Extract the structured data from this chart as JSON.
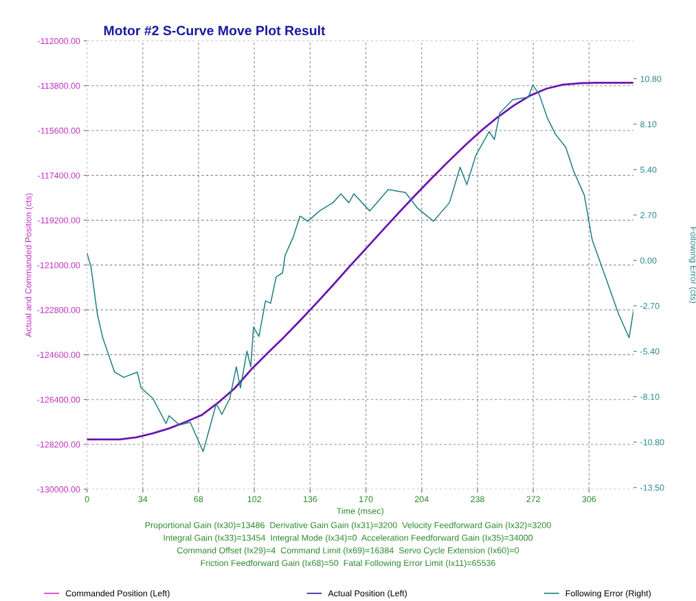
{
  "chart_data": {
    "type": "line",
    "title": "Motor #2 S-Curve Move Plot Result",
    "xlabel": "Time (msec)",
    "ylabel": "Actual and Commanded Position (cts)",
    "y2label": "Following Error (cts)",
    "xlim": [
      0,
      333
    ],
    "xticks": [
      0,
      34,
      68,
      102,
      136,
      170,
      204,
      238,
      272,
      306
    ],
    "ylim": [
      -130000,
      -112000
    ],
    "yticks": [
      {
        "value": -112000,
        "label": "-112000.00"
      },
      {
        "value": -113800,
        "label": "-113800.00"
      },
      {
        "value": -115600,
        "label": "-115600.00"
      },
      {
        "value": -117400,
        "label": "-117400.00"
      },
      {
        "value": -119200,
        "label": "-119200.00"
      },
      {
        "value": -121000,
        "label": "-121000.00"
      },
      {
        "value": -122800,
        "label": "-122800.00"
      },
      {
        "value": -124600,
        "label": "-124600.00"
      },
      {
        "value": -126400,
        "label": "-126400.00"
      },
      {
        "value": -128200,
        "label": "-128200.00"
      },
      {
        "value": -130000,
        "label": "-130000.00"
      }
    ],
    "y2lim": [
      -13.6,
      13.05
    ],
    "y2ticks": [
      {
        "value": 10.8,
        "label": "10.80"
      },
      {
        "value": 8.1,
        "label": "8.10"
      },
      {
        "value": 5.4,
        "label": "5.40"
      },
      {
        "value": 2.7,
        "label": "2.70"
      },
      {
        "value": 0,
        "label": "0.00"
      },
      {
        "value": -2.7,
        "label": "-2.70"
      },
      {
        "value": -5.4,
        "label": "-5.40"
      },
      {
        "value": -8.1,
        "label": "-8.10"
      },
      {
        "value": -10.8,
        "label": "-10.80"
      },
      {
        "value": -13.5,
        "label": "-13.50"
      }
    ],
    "grid": true,
    "legend": "bottom",
    "line_style": "solid",
    "marker": "none",
    "series": [
      {
        "name": "Commanded Position (Left)",
        "color": "#cc33cc",
        "x": [
          0,
          10,
          20,
          30,
          40,
          50,
          60,
          70,
          80,
          90,
          100,
          110,
          120,
          130,
          140,
          150,
          160,
          170,
          180,
          190,
          200,
          210,
          220,
          230,
          240,
          250,
          260,
          270,
          280,
          290,
          300,
          310,
          320,
          333
        ],
        "values": [
          -128000,
          -128000,
          -128000,
          -127920,
          -127760,
          -127560,
          -127300,
          -127020,
          -126520,
          -125950,
          -125200,
          -124540,
          -123900,
          -123220,
          -122520,
          -121800,
          -121060,
          -120340,
          -119620,
          -118900,
          -118200,
          -117520,
          -116860,
          -116220,
          -115620,
          -115080,
          -114600,
          -114200,
          -113920,
          -113760,
          -113700,
          -113680,
          -113680,
          -113680
        ]
      },
      {
        "name": "Actual Position (Left)",
        "color": "#2a1fa0",
        "x": [
          0,
          10,
          20,
          30,
          40,
          50,
          60,
          70,
          80,
          90,
          100,
          110,
          120,
          130,
          140,
          150,
          160,
          170,
          180,
          190,
          200,
          210,
          220,
          230,
          240,
          250,
          260,
          270,
          280,
          290,
          300,
          310,
          320,
          333
        ],
        "values": [
          -128000,
          -128000,
          -128000,
          -127920,
          -127760,
          -127560,
          -127300,
          -127020,
          -126520,
          -125950,
          -125200,
          -124540,
          -123900,
          -123220,
          -122520,
          -121800,
          -121060,
          -120340,
          -119620,
          -118900,
          -118200,
          -117520,
          -116860,
          -116220,
          -115620,
          -115080,
          -114600,
          -114200,
          -113920,
          -113760,
          -113700,
          -113680,
          -113680,
          -113680
        ]
      },
      {
        "name": "Following Error (Right)",
        "color": "#1f7f7f",
        "axis": "y2",
        "x": [
          0,
          2.4,
          6.3,
          9.6,
          16.8,
          22.5,
          30.6,
          33,
          40.2,
          48.2,
          50,
          56.4,
          62.9,
          70.8,
          75.7,
          78.8,
          82.2,
          87,
          91,
          93.5,
          97.5,
          99.8,
          101.5,
          104.8,
          108.8,
          111.9,
          115.3,
          119.2,
          120.7,
          125.7,
          129.8,
          134.6,
          141.7,
          149.9,
          154.7,
          159.6,
          162.7,
          172.3,
          183.6,
          194.1,
          201.5,
          211.2,
          220.9,
          227.4,
          231.5,
          237,
          245.1,
          248.3,
          251.6,
          259.6,
          269,
          271.7,
          275.7,
          280.6,
          285.4,
          291.8,
          296.6,
          303.1,
          307.9,
          316,
          324,
          330.4,
          333
        ],
        "values": [
          0.43,
          -0.36,
          -3.19,
          -4.6,
          -6.64,
          -6.95,
          -6.64,
          -7.58,
          -8.21,
          -9.7,
          -9.23,
          -9.78,
          -9.62,
          -11.36,
          -9.62,
          -8.52,
          -9.15,
          -8.21,
          -6.33,
          -7.58,
          -5.39,
          -6.33,
          -3.96,
          -4.52,
          -2.4,
          -2.55,
          -0.98,
          -0.74,
          0.29,
          1.39,
          2.63,
          2.33,
          2.94,
          3.43,
          3.96,
          3.43,
          3.96,
          2.94,
          4.21,
          4.04,
          3.1,
          2.33,
          3.43,
          5.54,
          4.51,
          6.25,
          7.66,
          7.19,
          8.76,
          9.56,
          9.7,
          10.42,
          9.86,
          8.46,
          7.52,
          6.72,
          5.31,
          3.88,
          1.23,
          -0.98,
          -3.19,
          -4.6,
          -3.02
        ]
      }
    ],
    "annotations": [
      "Proportional Gain (Ix30)=13486  Derivative Gain Gain (Ix31)=3200  Velocity Feedforward Gain (Ix32)=3200",
      "Integral Gain (Ix33)=13454  Integral Mode (Ix34)=0  Acceleration Feedforward Gain (Ix35)=34000",
      "Command Offset (Ix29)=4  Command Limit (Ix69)=16384  Servo Cycle Extension (Ix60)=0",
      "Friction Feedforward Gain (Ix68)=50  Fatal Following Error Limit (Ix11)=65536"
    ]
  }
}
